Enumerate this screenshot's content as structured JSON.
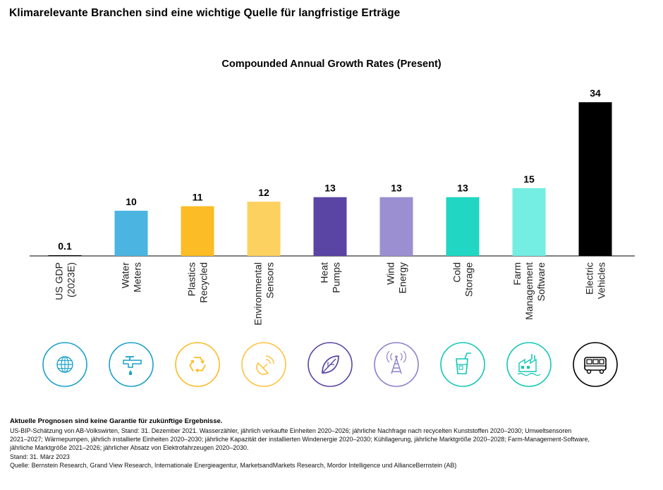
{
  "page_title": "Klimarelevante Branchen sind eine wichtige Quelle für langfristige Erträge",
  "chart_data": {
    "type": "bar",
    "title": "Compounded Annual Growth Rates (Present)",
    "xlabel": "",
    "ylabel": "",
    "ylim": [
      0,
      34
    ],
    "grid": false,
    "categories": [
      [
        "US GDP",
        "(2023E)"
      ],
      [
        "Water",
        "Meters"
      ],
      [
        "Plastics",
        "Recycled"
      ],
      [
        "Environmental",
        "Sensors"
      ],
      [
        "Heat",
        "Pumps"
      ],
      [
        "Wind",
        "Energy"
      ],
      [
        "Cold",
        "Storage"
      ],
      [
        "Farm",
        "Management",
        "Software"
      ],
      [
        "Electric",
        "Vehicles"
      ]
    ],
    "values": [
      0.1,
      10,
      11,
      12,
      13,
      13,
      13,
      15,
      34
    ],
    "value_labels": [
      "0.1",
      "10",
      "11",
      "12",
      "13",
      "13",
      "13",
      "15",
      "34"
    ],
    "colors": [
      "#000000",
      "#4BB4E0",
      "#FBBC25",
      "#FDD15F",
      "#5A45A4",
      "#9B8FD1",
      "#21D6C2",
      "#74EDE2",
      "#000000"
    ],
    "icons": [
      "globe-icon",
      "water-tap-icon",
      "recycle-icon",
      "satellite-dish-icon",
      "leaf-icon",
      "wind-tower-icon",
      "cold-drink-icon",
      "farm-factory-icon",
      "bus-icon"
    ],
    "icon_colors": [
      "#1AA1C9",
      "#1AA1C9",
      "#FBBC25",
      "#FDC341",
      "#5A45A4",
      "#8E7FCB",
      "#12C7B5",
      "#12C7B5",
      "#000000"
    ]
  },
  "footer": {
    "disclaimer": "Aktuelle Prognosen sind keine Garantie für zukünftige Ergebnisse.",
    "notes_line1": "US-BIP-Schätzung von AB-Volkswirten, Stand: 31. Dezember 2021. Wasserzähler, jährlich verkaufte Einheiten 2020–2026; jährliche Nachfrage nach recycelten Kunststoffen 2020–2030; Umweltsensoren",
    "notes_line2": "2021–2027; Wärmepumpen, jährlich installierte Einheiten 2020–2030; jährliche Kapazität der installierten Windenergie 2020–2030; Kühllagerung, jährliche Marktgröße 2020–2028; Farm-Management-Software,",
    "notes_line3": "jährliche Marktgröße 2021–2026; jährlicher Absatz von Elektrofahrzeugen 2020–2030.",
    "date": "Stand: 31. März 2023",
    "source": "Quelle: Bernstein Research, Grand View Research, Internationale Energieagentur, MarketsandMarkets Research, Mordor Intelligence und AllianceBernstein (AB)"
  }
}
